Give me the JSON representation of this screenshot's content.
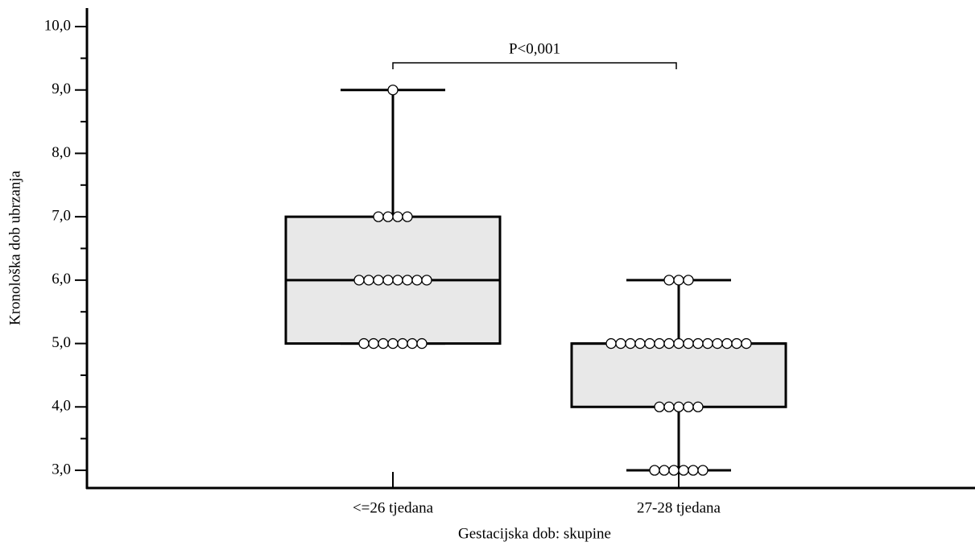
{
  "chart_data": {
    "type": "box",
    "xlabel": "Gestacijska dob: skupine",
    "ylabel": "Kronološka dob ubrzanja",
    "annotation": "P<0,001",
    "box_color": "#e8e8e8",
    "point_color": "#ffffff",
    "ylim": [
      2.7,
      10.3
    ],
    "yticks": [
      {
        "value": 3,
        "label": "3,0"
      },
      {
        "value": 4,
        "label": "4,0"
      },
      {
        "value": 5,
        "label": "5,0"
      },
      {
        "value": 6,
        "label": "6,0"
      },
      {
        "value": 7,
        "label": "7,0"
      },
      {
        "value": 8,
        "label": "8,0"
      },
      {
        "value": 9,
        "label": "9,0"
      },
      {
        "value": 10,
        "label": "10,0"
      }
    ],
    "yminorticks": [
      3.5,
      4.5,
      5.5,
      6.5,
      7.5,
      8.5,
      9.5
    ],
    "groups": [
      {
        "name": "<=26 tjedana",
        "min": 5,
        "q1": 5,
        "median": 6,
        "q3": 7,
        "max": 9,
        "points": [
          9,
          7,
          7,
          7,
          7,
          6,
          6,
          6,
          6,
          6,
          6,
          6,
          6,
          5,
          5,
          5,
          5,
          5,
          5,
          5
        ]
      },
      {
        "name": "27-28 tjedana",
        "min": 3,
        "q1": 4,
        "median": 5,
        "q3": 5,
        "max": 6,
        "points": [
          6,
          6,
          6,
          5,
          5,
          5,
          5,
          5,
          5,
          5,
          5,
          5,
          5,
          5,
          5,
          5,
          5,
          5,
          4,
          4,
          4,
          4,
          4,
          3,
          3,
          3,
          3,
          3,
          3
        ]
      }
    ]
  }
}
